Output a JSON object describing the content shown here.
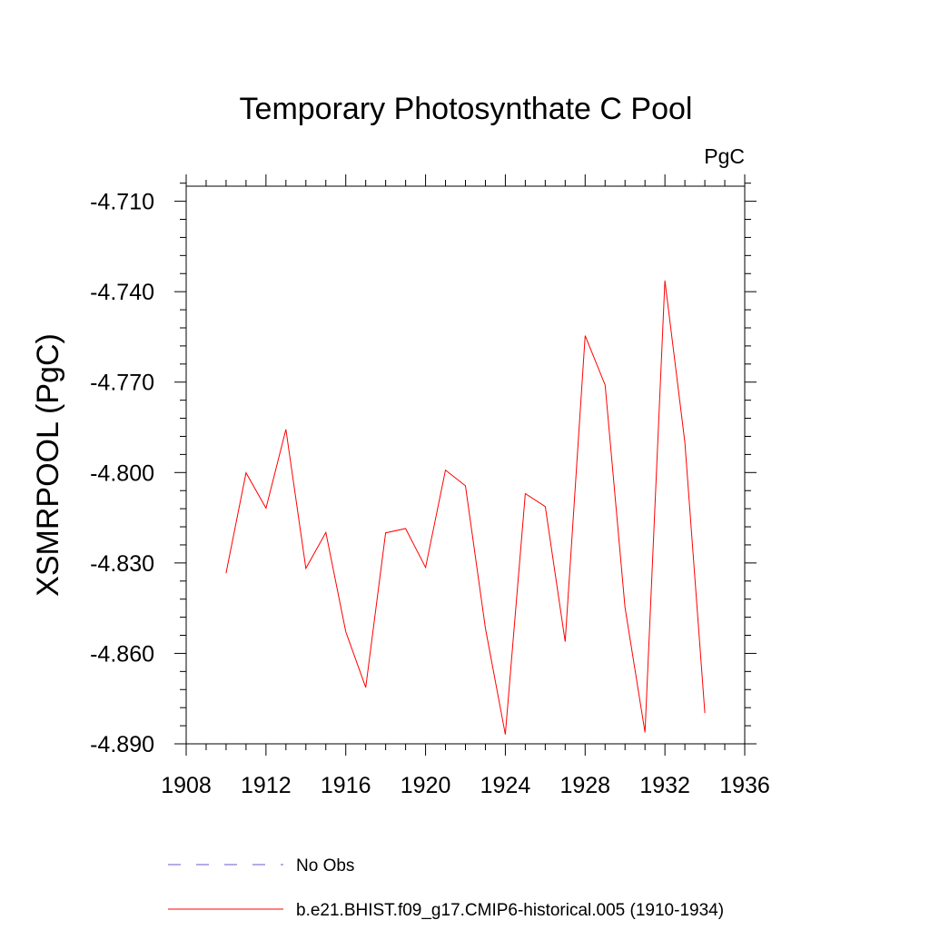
{
  "chart_data": {
    "type": "line",
    "title": "Temporary Photosynthate C Pool",
    "units_label": "PgC",
    "ylabel": "XSMRPOOL  (PgC)",
    "xlabel": "",
    "xlim": [
      1908,
      1936
    ],
    "ylim": [
      -4.89,
      -4.705
    ],
    "x_major_ticks": [
      1908,
      1912,
      1916,
      1920,
      1924,
      1928,
      1932,
      1936
    ],
    "x_tick_labels": [
      "1908",
      "1912",
      "1916",
      "1920",
      "1924",
      "1928",
      "1932",
      "1936"
    ],
    "y_major_ticks": [
      -4.71,
      -4.74,
      -4.77,
      -4.8,
      -4.83,
      -4.86,
      -4.89
    ],
    "y_tick_labels": [
      "-4.710",
      "-4.740",
      "-4.770",
      "-4.800",
      "-4.830",
      "-4.860",
      "-4.890"
    ],
    "grid": false,
    "series": [
      {
        "name": "b.e21.BHIST.f09_g17.CMIP6-historical.005 (1910-1934)",
        "color": "#ff0000",
        "style": "solid",
        "x": [
          1910,
          1911,
          1912,
          1913,
          1914,
          1915,
          1916,
          1917,
          1918,
          1919,
          1920,
          1921,
          1922,
          1923,
          1924,
          1925,
          1926,
          1927,
          1928,
          1929,
          1930,
          1931,
          1932,
          1933,
          1934
        ],
        "y": [
          -4.8334,
          -4.8001,
          -4.8118,
          -4.7857,
          -4.8318,
          -4.8199,
          -4.8528,
          -4.8713,
          -4.82,
          -4.8186,
          -4.8315,
          -4.7992,
          -4.8044,
          -4.8517,
          -4.8869,
          -4.807,
          -4.8113,
          -4.8561,
          -4.7546,
          -4.771,
          -4.8448,
          -4.8862,
          -4.7363,
          -4.79,
          -4.8798
        ]
      }
    ],
    "legend": [
      {
        "label": "No Obs",
        "color": "#6a5acd",
        "style": "dashed"
      },
      {
        "label": "b.e21.BHIST.f09_g17.CMIP6-historical.005 (1910-1934)",
        "color": "#ff0000",
        "style": "solid"
      }
    ]
  }
}
